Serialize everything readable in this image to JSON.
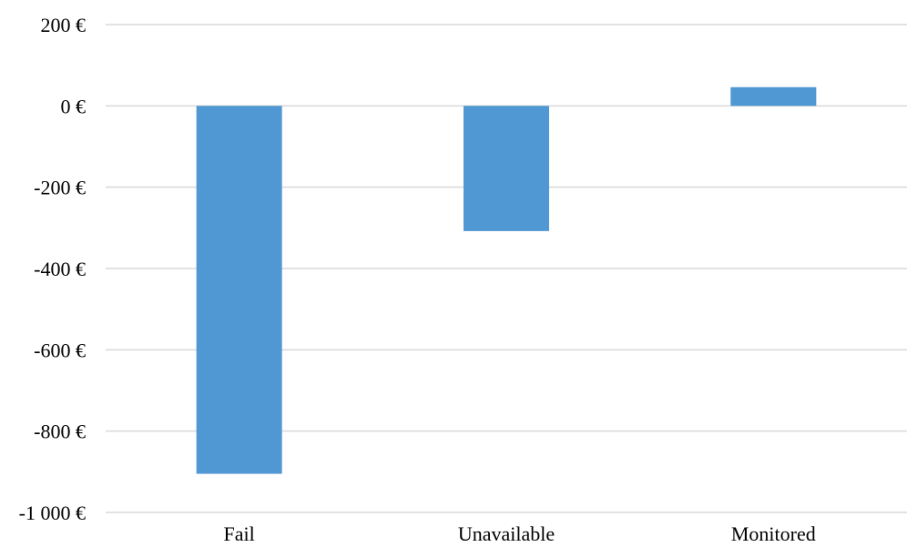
{
  "chart_data": {
    "type": "bar",
    "categories": [
      "Fail",
      "Unavailable",
      "Monitored"
    ],
    "values": [
      -905,
      -308,
      46
    ],
    "yticks": [
      200,
      0,
      -200,
      -400,
      -600,
      -800,
      -1000
    ],
    "ytick_labels": [
      "200 €",
      "0 €",
      "-200 €",
      "-400 €",
      "-600 €",
      "-800 €",
      "-1 000 €"
    ],
    "ylim": [
      -1000,
      200
    ],
    "grid": true,
    "bar_color": "#5098d3",
    "gridline_color": "#d9d9d9",
    "title": "",
    "xlabel": "",
    "ylabel": ""
  }
}
